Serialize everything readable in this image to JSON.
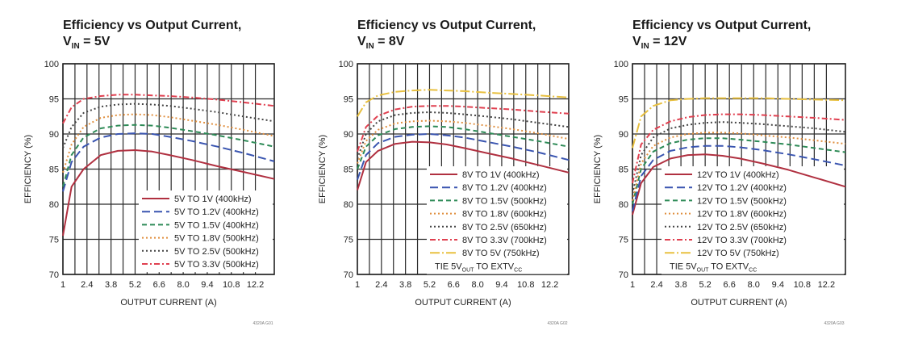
{
  "chart_data": [
    {
      "type": "line",
      "title": "Efficiency vs Output Current,",
      "title_line2": {
        "prefix": "V",
        "subscript": "IN",
        "suffix": " = 5V"
      },
      "xlabel": "OUTPUT CURRENT (A)",
      "ylabel": "EFFICIENCY (%)",
      "xlim": [
        1,
        13.3
      ],
      "ylim": [
        70,
        100
      ],
      "xticks": [
        1,
        2.4,
        3.8,
        5.2,
        6.6,
        8.0,
        9.4,
        10.8,
        12.2
      ],
      "xtick_labels": [
        "1",
        "2.4",
        "3.8",
        "5.2",
        "6.6",
        "8.0",
        "9.4",
        "10.8",
        "12.2"
      ],
      "yticks": [
        70,
        75,
        80,
        85,
        90,
        95,
        100
      ],
      "ytick_labels": [
        "70",
        "75",
        "80",
        "85",
        "90",
        "95",
        "100"
      ],
      "grid": true,
      "legend_position": "bottom-right",
      "figure_code": "4320A G01",
      "series": [
        {
          "name": "5V TO 1V (400kHz)",
          "color": "#b03040",
          "dash": "solid",
          "x": [
            1,
            1.5,
            2.2,
            3.2,
            4.2,
            5.2,
            6.2,
            7.2,
            8.5,
            10,
            11.5,
            13.3
          ],
          "y": [
            75.5,
            82.5,
            85,
            87,
            87.6,
            87.7,
            87.5,
            87,
            86.3,
            85.4,
            84.6,
            83.6
          ]
        },
        {
          "name": "5V TO 1.2V (400kHz)",
          "color": "#3a55b0",
          "dash": "longdash",
          "x": [
            1,
            1.5,
            2.2,
            3.2,
            4.2,
            5.2,
            6.2,
            7.2,
            8.5,
            10,
            11.5,
            13.3
          ],
          "y": [
            81.8,
            86,
            88.2,
            89.5,
            90,
            90.1,
            90,
            89.6,
            89,
            88.2,
            87.3,
            86.1
          ]
        },
        {
          "name": "5V TO 1.5V (400kHz)",
          "color": "#2e8b57",
          "dash": "dash",
          "x": [
            1,
            1.5,
            2.2,
            3.2,
            4.2,
            5.2,
            6.2,
            7.2,
            8.5,
            10,
            11.5,
            13.3
          ],
          "y": [
            82.5,
            87,
            89.5,
            90.8,
            91.2,
            91.3,
            91.2,
            90.9,
            90.4,
            89.8,
            89.1,
            88.2
          ]
        },
        {
          "name": "5V TO 1.8V (500kHz)",
          "color": "#e09040",
          "dash": "dot",
          "x": [
            1,
            1.5,
            2.2,
            3.2,
            4.2,
            5.2,
            6.2,
            7.2,
            8.5,
            10,
            11.5,
            13.3
          ],
          "y": [
            84.5,
            88.5,
            91,
            92.3,
            92.7,
            92.8,
            92.7,
            92.4,
            91.9,
            91.3,
            90.6,
            89.7
          ]
        },
        {
          "name": "5V TO 2.5V (500kHz)",
          "color": "#444444",
          "dash": "dot",
          "x": [
            1,
            1.5,
            2.2,
            3.2,
            4.2,
            5.2,
            6.2,
            7.2,
            8.5,
            10,
            11.5,
            13.3
          ],
          "y": [
            88,
            91,
            93,
            93.9,
            94.2,
            94.3,
            94.2,
            94,
            93.6,
            93.1,
            92.5,
            91.8
          ]
        },
        {
          "name": "5V TO 3.3V (500kHz)",
          "color": "#e04050",
          "dash": "dashdot",
          "x": [
            1,
            1.5,
            2.2,
            3.2,
            4.2,
            5.2,
            6.2,
            7.2,
            8.5,
            10,
            11.5,
            13.3
          ],
          "y": [
            91.5,
            93.8,
            95,
            95.4,
            95.6,
            95.6,
            95.5,
            95.4,
            95.2,
            94.9,
            94.5,
            94
          ]
        }
      ]
    },
    {
      "type": "line",
      "title": "Efficiency vs Output Current,",
      "title_line2": {
        "prefix": "V",
        "subscript": "IN",
        "suffix": " = 8V"
      },
      "xlabel": "OUTPUT CURRENT (A)",
      "ylabel": "EFFICIENCY (%)",
      "xlim": [
        1,
        13.3
      ],
      "ylim": [
        70,
        100
      ],
      "xticks": [
        1,
        2.4,
        3.8,
        5.2,
        6.6,
        8.0,
        9.4,
        10.8,
        12.2
      ],
      "xtick_labels": [
        "1",
        "2.4",
        "3.8",
        "5.2",
        "6.6",
        "8.0",
        "9.4",
        "10.8",
        "12.2"
      ],
      "yticks": [
        70,
        75,
        80,
        85,
        90,
        95,
        100
      ],
      "ytick_labels": [
        "70",
        "75",
        "80",
        "85",
        "90",
        "95",
        "100"
      ],
      "grid": true,
      "legend_position": "bottom-right",
      "figure_code": "4320A G02",
      "legend_note": {
        "prefix": "TIE 5V",
        "subscript": "OUT",
        "suffix": " TO EXTV",
        "subscript2": "CC"
      },
      "series": [
        {
          "name": "8V TO 1V (400kHz)",
          "color": "#b03040",
          "dash": "solid",
          "x": [
            1,
            1.5,
            2.2,
            3.2,
            4.2,
            5.2,
            6.2,
            7.2,
            8.5,
            10,
            11.5,
            13.3
          ],
          "y": [
            82,
            86,
            87.6,
            88.6,
            88.9,
            88.8,
            88.5,
            88,
            87.3,
            86.5,
            85.6,
            84.5
          ]
        },
        {
          "name": "8V TO 1.2V (400kHz)",
          "color": "#3a55b0",
          "dash": "longdash",
          "x": [
            1,
            1.5,
            2.2,
            3.2,
            4.2,
            5.2,
            6.2,
            7.2,
            8.5,
            10,
            11.5,
            13.3
          ],
          "y": [
            83.5,
            87,
            88.7,
            89.6,
            89.9,
            90,
            89.8,
            89.5,
            88.9,
            88.2,
            87.4,
            86.3
          ]
        },
        {
          "name": "8V TO 1.5V (500kHz)",
          "color": "#2e8b57",
          "dash": "dash",
          "x": [
            1,
            1.5,
            2.2,
            3.2,
            4.2,
            5.2,
            6.2,
            7.2,
            8.5,
            10,
            11.5,
            13.3
          ],
          "y": [
            85,
            88.2,
            89.8,
            90.7,
            91,
            91.1,
            91,
            90.7,
            90.2,
            89.6,
            89,
            88.2
          ]
        },
        {
          "name": "8V TO 1.8V (600kHz)",
          "color": "#e09040",
          "dash": "dot",
          "x": [
            1,
            1.5,
            2.2,
            3.2,
            4.2,
            5.2,
            6.2,
            7.2,
            8.5,
            10,
            11.5,
            13.3
          ],
          "y": [
            85.8,
            89,
            90.6,
            91.5,
            91.8,
            91.9,
            91.8,
            91.6,
            91.2,
            90.7,
            90.1,
            89.3
          ]
        },
        {
          "name": "8V TO 2.5V (650kHz)",
          "color": "#444444",
          "dash": "dot",
          "x": [
            1,
            1.5,
            2.2,
            3.2,
            4.2,
            5.2,
            6.2,
            7.2,
            8.5,
            10,
            11.5,
            13.3
          ],
          "y": [
            86.5,
            90,
            91.8,
            92.7,
            93,
            93.1,
            93,
            92.8,
            92.5,
            92.1,
            91.6,
            91
          ]
        },
        {
          "name": "8V TO 3.3V (700kHz)",
          "color": "#e04050",
          "dash": "dashdot",
          "x": [
            1,
            1.5,
            2.2,
            3.2,
            4.2,
            5.2,
            6.2,
            7.2,
            8.5,
            10,
            11.5,
            13.3
          ],
          "y": [
            87.5,
            91,
            92.6,
            93.5,
            93.9,
            94,
            94,
            93.9,
            93.7,
            93.5,
            93.2,
            92.9
          ]
        },
        {
          "name": "8V TO 5V (750kHz)",
          "color": "#e8c040",
          "dash": "longdashdot",
          "x": [
            1,
            1.5,
            2.2,
            3.2,
            4.2,
            5.2,
            6.2,
            7.2,
            8.5,
            10,
            11.5,
            13.3
          ],
          "y": [
            92.5,
            94.5,
            95.5,
            96,
            96.2,
            96.3,
            96.2,
            96.1,
            95.9,
            95.7,
            95.5,
            95.2
          ]
        }
      ]
    },
    {
      "type": "line",
      "title": "Efficiency vs Output Current,",
      "title_line2": {
        "prefix": "V",
        "subscript": "IN",
        "suffix": " = 12V"
      },
      "xlabel": "OUTPUT CURRENT (A)",
      "ylabel": "EFFICIENCY (%)",
      "xlim": [
        1,
        13.3
      ],
      "ylim": [
        70,
        100
      ],
      "xticks": [
        1,
        2.4,
        3.8,
        5.2,
        6.6,
        8.0,
        9.4,
        10.8,
        12.2
      ],
      "xtick_labels": [
        "1",
        "2.4",
        "3.8",
        "5.2",
        "6.6",
        "8.0",
        "9.4",
        "10.8",
        "12.2"
      ],
      "yticks": [
        70,
        75,
        80,
        85,
        90,
        95,
        100
      ],
      "ytick_labels": [
        "70",
        "75",
        "80",
        "85",
        "90",
        "95",
        "100"
      ],
      "grid": true,
      "legend_position": "bottom-right",
      "figure_code": "4320A G03",
      "legend_note": {
        "prefix": "TIE 5V",
        "subscript": "OUT",
        "suffix": "  TO EXTV",
        "subscript2": "CC"
      },
      "series": [
        {
          "name": "12V TO 1V (400kHz)",
          "color": "#b03040",
          "dash": "solid",
          "x": [
            1,
            1.5,
            2.2,
            3.2,
            4.2,
            5.2,
            6.2,
            7.2,
            8.5,
            10,
            11.5,
            13.3
          ],
          "y": [
            78.5,
            83,
            85.3,
            86.5,
            87,
            87.1,
            86.9,
            86.5,
            85.8,
            84.9,
            83.8,
            82.5
          ]
        },
        {
          "name": "12V TO 1.2V (400kHz)",
          "color": "#3a55b0",
          "dash": "longdash",
          "x": [
            1,
            1.5,
            2.2,
            3.2,
            4.2,
            5.2,
            6.2,
            7.2,
            8.5,
            10,
            11.5,
            13.3
          ],
          "y": [
            79,
            84,
            86.3,
            87.6,
            88.1,
            88.3,
            88.3,
            88.1,
            87.7,
            87.1,
            86.4,
            85.5
          ]
        },
        {
          "name": "12V TO 1.5V (500kHz)",
          "color": "#2e8b57",
          "dash": "dash",
          "x": [
            1,
            1.5,
            2.2,
            3.2,
            4.2,
            5.2,
            6.2,
            7.2,
            8.5,
            10,
            11.5,
            13.3
          ],
          "y": [
            80,
            85,
            87.5,
            88.7,
            89.2,
            89.4,
            89.4,
            89.2,
            88.9,
            88.5,
            88,
            87.4
          ]
        },
        {
          "name": "12V TO 1.8V (600kHz)",
          "color": "#e09040",
          "dash": "dot",
          "x": [
            1,
            1.5,
            2.2,
            3.2,
            4.2,
            5.2,
            6.2,
            7.2,
            8.5,
            10,
            11.5,
            13.3
          ],
          "y": [
            80.5,
            85.8,
            88.3,
            89.5,
            90,
            90.2,
            90.2,
            90.1,
            89.8,
            89.5,
            89.1,
            88.6
          ]
        },
        {
          "name": "12V TO 2.5V (650kHz)",
          "color": "#444444",
          "dash": "dot",
          "x": [
            1,
            1.5,
            2.2,
            3.2,
            4.2,
            5.2,
            6.2,
            7.2,
            8.5,
            10,
            11.5,
            13.3
          ],
          "y": [
            81.5,
            87,
            89.5,
            90.8,
            91.3,
            91.6,
            91.7,
            91.6,
            91.4,
            91.1,
            90.8,
            90.3
          ]
        },
        {
          "name": "12V TO 3.3V (700kHz)",
          "color": "#e04050",
          "dash": "dashdot",
          "x": [
            1,
            1.5,
            2.2,
            3.2,
            4.2,
            5.2,
            6.2,
            7.2,
            8.5,
            10,
            11.5,
            13.3
          ],
          "y": [
            83,
            88.5,
            90.6,
            91.8,
            92.4,
            92.7,
            92.8,
            92.8,
            92.7,
            92.5,
            92.3,
            92
          ]
        },
        {
          "name": "12V TO 5V (750kHz)",
          "color": "#e8c040",
          "dash": "longdashdot",
          "x": [
            1,
            1.5,
            2.2,
            3.2,
            4.2,
            5.2,
            6.2,
            7.2,
            8.5,
            10,
            11.5,
            13.3
          ],
          "y": [
            88,
            92.5,
            94,
            94.8,
            95,
            95.1,
            95.1,
            95.1,
            95.1,
            95,
            94.9,
            94.8
          ]
        }
      ]
    }
  ]
}
